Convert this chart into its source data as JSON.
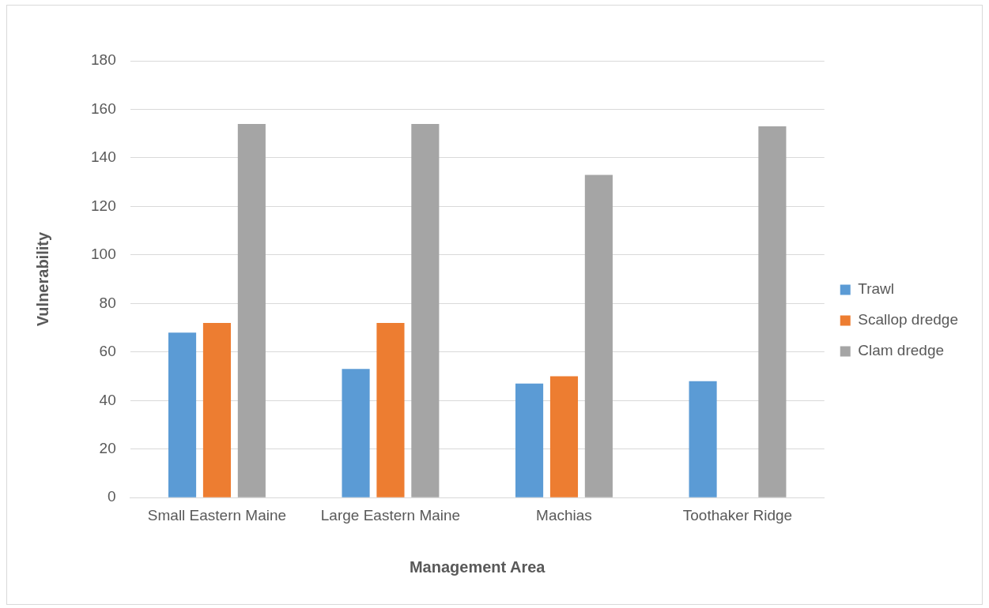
{
  "chart_data": {
    "type": "bar",
    "xlabel": "Management Area",
    "ylabel": "Vulnerability",
    "categories": [
      "Small Eastern Maine",
      "Large Eastern Maine",
      "Machias",
      "Toothaker Ridge"
    ],
    "series": [
      {
        "name": "Trawl",
        "color": "#5b9bd5",
        "values": [
          68,
          53,
          47,
          48
        ]
      },
      {
        "name": "Scallop dredge",
        "color": "#ed7d31",
        "values": [
          72,
          72,
          50,
          null
        ]
      },
      {
        "name": "Clam dredge",
        "color": "#a5a5a5",
        "values": [
          154,
          154,
          133,
          153
        ]
      }
    ],
    "ylim": [
      0,
      180
    ],
    "yticks": [
      0,
      20,
      40,
      60,
      80,
      100,
      120,
      140,
      160,
      180
    ],
    "grid": "y",
    "legend": "right"
  }
}
